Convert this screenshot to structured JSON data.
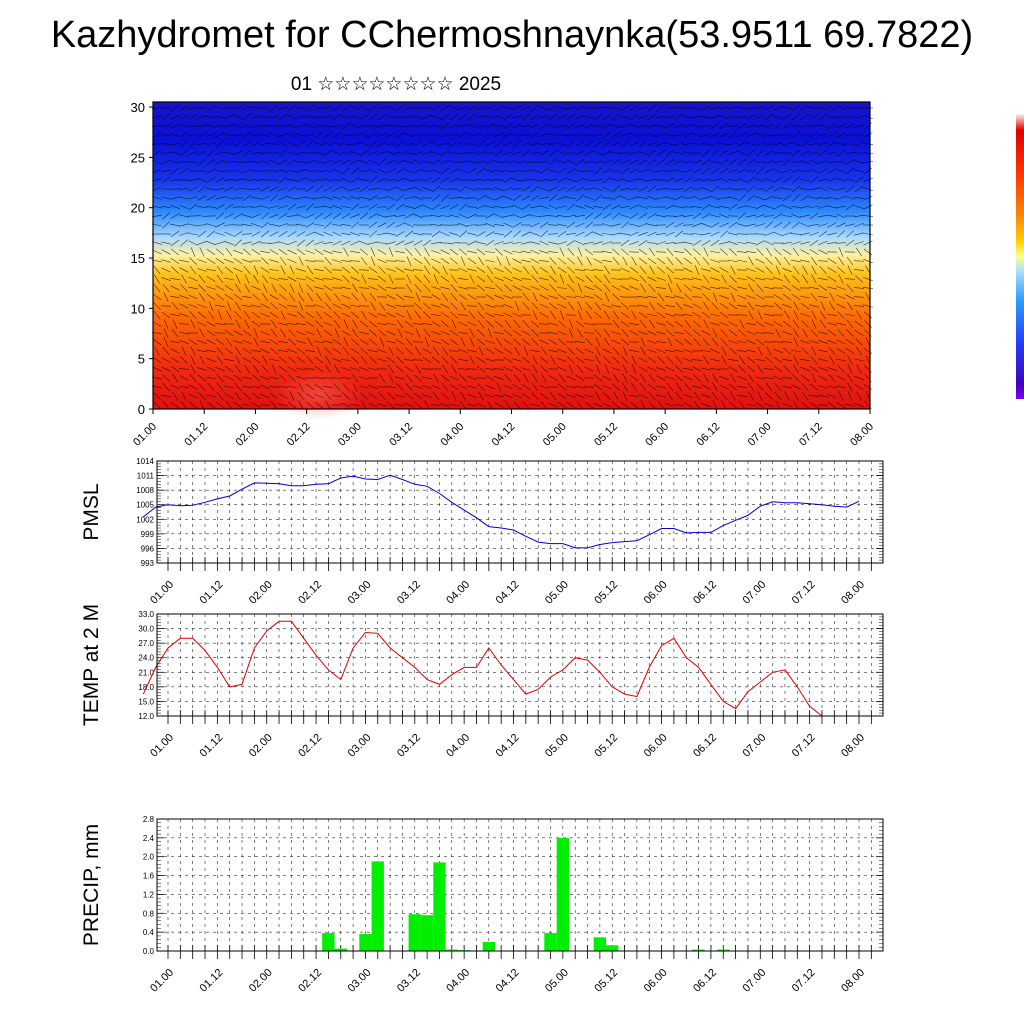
{
  "title": "Kazhydromet for CChermoshnaynka(53.9511 69.7822)",
  "subtitle": "01 ☆☆☆☆☆☆☆☆ 2025",
  "colors": {
    "pmsl_line": "#0000cc",
    "temp_line": "#dd0000",
    "precip_bar": "#00ee00",
    "grid": "#000000"
  },
  "chart_data": [
    {
      "type": "heatmap",
      "name": "wind-temperature cross-section",
      "title": "",
      "xlabel": "",
      "ylabel": "",
      "x_tick_labels": [
        "01.00",
        "01.12",
        "02.00",
        "02.12",
        "03.00",
        "03.12",
        "04.00",
        "04.12",
        "05.00",
        "05.12",
        "06.00",
        "06.12",
        "07.00",
        "07.12",
        "08.00"
      ],
      "y_tick_labels": [
        "0",
        "5",
        "10",
        "15",
        "20",
        "25",
        "30"
      ],
      "ylim": [
        0,
        30.5
      ],
      "color_scale": "red (low levels) to yellow (~15) to blue (upper levels)",
      "overlay": "wind barbs",
      "colorbar": "right edge"
    },
    {
      "type": "line",
      "ylabel": "PMSL",
      "ylim": [
        993,
        1014
      ],
      "y_ticks": [
        "993",
        "996",
        "999",
        "1002",
        "1005",
        "1008",
        "1011",
        "1014"
      ],
      "x_tick_labels": [
        "01.00",
        "01.12",
        "02.00",
        "02.12",
        "03.00",
        "03.12",
        "04.00",
        "04.12",
        "05.00",
        "05.12",
        "06.00",
        "06.12",
        "07.00",
        "07.12",
        "08.00"
      ],
      "x_step_hours": 3,
      "x_start_hours": -6,
      "values": [
        1002.5,
        1004.5,
        1005.0,
        1004.8,
        1004.9,
        1005.5,
        1006.2,
        1006.8,
        1008.2,
        1009.5,
        1009.4,
        1009.3,
        1008.9,
        1008.9,
        1009.2,
        1009.3,
        1010.5,
        1010.9,
        1010.3,
        1010.2,
        1011.1,
        1010.2,
        1009.2,
        1008.8,
        1007.3,
        1005.5,
        1003.9,
        1002.3,
        1000.5,
        1000.2,
        999.8,
        998.5,
        997.3,
        997.0,
        997.0,
        996.1,
        996.1,
        996.8,
        997.2,
        997.4,
        997.6,
        998.8,
        1000.1,
        1000.1,
        999.2,
        999.3,
        999.3,
        1000.7,
        1001.8,
        1002.8,
        1004.7,
        1005.6,
        1005.4,
        1005.4,
        1005.2,
        1005.0,
        1004.7,
        1004.5,
        1005.7
      ]
    },
    {
      "type": "line",
      "ylabel": "TEMP at 2 M",
      "ylim": [
        12.0,
        33.0
      ],
      "y_ticks": [
        "12.0",
        "15.0",
        "18.0",
        "21.0",
        "24.0",
        "27.0",
        "30.0",
        "33.0"
      ],
      "x_tick_labels": [
        "01.00",
        "01.12",
        "02.00",
        "02.12",
        "03.00",
        "03.12",
        "04.00",
        "04.12",
        "05.00",
        "05.12",
        "06.00",
        "06.12",
        "07.00",
        "07.12",
        "08.00"
      ],
      "x_step_hours": 3,
      "x_start_hours": -6,
      "values": [
        16.5,
        22.0,
        26.0,
        28.0,
        28.0,
        25.5,
        22.0,
        18.0,
        18.5,
        26.0,
        29.5,
        31.5,
        31.5,
        28.0,
        24.5,
        21.5,
        19.5,
        26.0,
        29.2,
        29.0,
        26.0,
        24.0,
        22.0,
        19.5,
        18.5,
        20.5,
        22.0,
        22.0,
        26.0,
        22.5,
        19.5,
        16.5,
        17.5,
        20.0,
        21.5,
        24.0,
        23.5,
        21.0,
        18.0,
        16.5,
        16.0,
        22.0,
        26.5,
        28.0,
        24.0,
        22.0,
        18.5,
        15.0,
        13.5,
        17.0,
        19.0,
        21.0,
        21.5,
        18.0,
        14.0,
        12.0
      ]
    },
    {
      "type": "bar",
      "ylabel": "PRECIP, mm",
      "ylim": [
        0.0,
        2.8
      ],
      "y_ticks": [
        "0.0",
        "0.4",
        "0.8",
        "1.2",
        "1.6",
        "2.0",
        "2.4",
        "2.8"
      ],
      "x_tick_labels": [
        "01.00",
        "01.12",
        "02.00",
        "02.12",
        "03.00",
        "03.12",
        "04.00",
        "04.12",
        "05.00",
        "05.12",
        "06.00",
        "06.12",
        "07.00",
        "07.12",
        "08.00"
      ],
      "x_step_hours": 3,
      "x_start_hours": -6,
      "values": [
        0,
        0,
        0,
        0,
        0,
        0,
        0,
        0,
        0,
        0,
        0,
        0,
        0,
        0,
        0,
        0.38,
        0.05,
        0,
        0.36,
        1.9,
        0,
        0,
        0.78,
        0.76,
        1.88,
        0.03,
        0.02,
        0,
        0.19,
        0,
        0,
        0,
        0,
        0.38,
        2.4,
        0,
        0,
        0.29,
        0.12,
        0,
        0,
        0,
        0,
        0,
        0,
        0.03,
        0,
        0.03,
        0,
        0,
        0,
        0,
        0,
        0,
        0,
        0,
        0,
        0,
        0
      ]
    }
  ]
}
